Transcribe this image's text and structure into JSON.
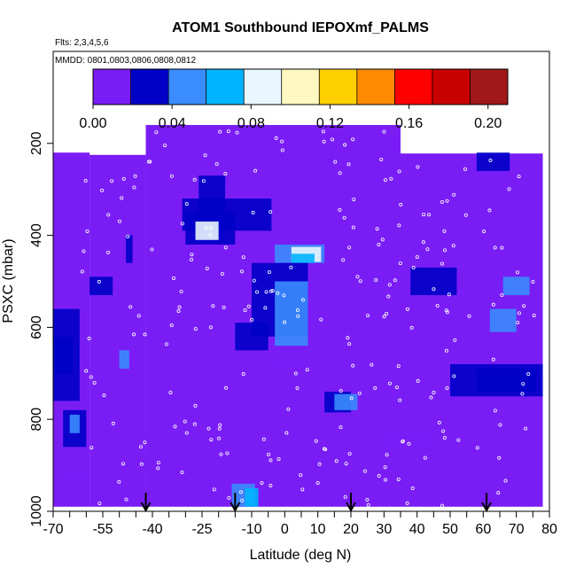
{
  "chart_data": {
    "type": "heatmap",
    "title": "ATOM1 Southbound IEPOXmf_PALMS",
    "flights_note": "Flts: 2,3,4,5,6",
    "dates_note": "MMDD: 0801,0803,0806,0808,0812",
    "xlabel": "Latitude (deg N)",
    "ylabel": "PSXC (mbar)",
    "xlim": [
      -70,
      80
    ],
    "ylim": [
      1000,
      0
    ],
    "x_ticks": [
      -70,
      -55,
      -40,
      -25,
      -10,
      0,
      10,
      20,
      30,
      40,
      50,
      60,
      70,
      80
    ],
    "x_minor_ticks": [
      -65,
      -60,
      -50,
      -45,
      -35,
      -30,
      -20,
      -15,
      -5,
      5,
      15,
      25,
      35,
      45,
      55,
      65,
      75
    ],
    "y_ticks": [
      200,
      400,
      600,
      800,
      1000
    ],
    "colorbar": {
      "ticks": [
        0.0,
        0.04,
        0.08,
        0.12,
        0.16,
        0.2
      ],
      "tick_labels": [
        "0.00",
        "0.04",
        "0.08",
        "0.12",
        "0.16",
        "0.20"
      ],
      "range": [
        0,
        0.21
      ],
      "colors": [
        "#7a1df5",
        "#0000c8",
        "#3a8cff",
        "#00b4ff",
        "#e8f6ff",
        "#fff8c0",
        "#ffd000",
        "#ff8c00",
        "#ff0000",
        "#c80000",
        "#a01818"
      ]
    },
    "background_value": 0.01,
    "coverage": [
      {
        "lat": [
          -70,
          -59
        ],
        "p": [
          220,
          990
        ]
      },
      {
        "lat": [
          -59,
          -42
        ],
        "p": [
          225,
          990
        ]
      },
      {
        "lat": [
          -42,
          35
        ],
        "p": [
          160,
          990
        ]
      },
      {
        "lat": [
          35,
          78
        ],
        "p": [
          222,
          990
        ]
      }
    ],
    "features": [
      {
        "lat": [
          -26,
          -18
        ],
        "p": [
          270,
          360
        ],
        "value": 0.03
      },
      {
        "lat": [
          -31,
          -4
        ],
        "p": [
          320,
          390
        ],
        "value": 0.02
      },
      {
        "lat": [
          -30,
          -15
        ],
        "p": [
          350,
          420
        ],
        "value": 0.035
      },
      {
        "lat": [
          -27,
          -20
        ],
        "p": [
          370,
          410
        ],
        "value": 0.08
      },
      {
        "lat": [
          -3,
          12
        ],
        "p": [
          420,
          460
        ],
        "value": 0.04
      },
      {
        "lat": [
          2,
          11
        ],
        "p": [
          425,
          458
        ],
        "value": 0.085
      },
      {
        "lat": [
          2,
          9
        ],
        "p": [
          440,
          460
        ],
        "value": 0.06
      },
      {
        "lat": [
          -10,
          7
        ],
        "p": [
          460,
          620
        ],
        "value": 0.025
      },
      {
        "lat": [
          -3,
          7
        ],
        "p": [
          500,
          640
        ],
        "value": 0.042
      },
      {
        "lat": [
          -15,
          -5
        ],
        "p": [
          590,
          650
        ],
        "value": 0.02
      },
      {
        "lat": [
          -5,
          6
        ],
        "p": [
          660,
          700
        ],
        "value": 0.018
      },
      {
        "lat": [
          12,
          20
        ],
        "p": [
          740,
          785
        ],
        "value": 0.035
      },
      {
        "lat": [
          15,
          22
        ],
        "p": [
          745,
          780
        ],
        "value": 0.05
      },
      {
        "lat": [
          -70,
          -62
        ],
        "p": [
          560,
          760
        ],
        "value": 0.02
      },
      {
        "lat": [
          -70,
          -64
        ],
        "p": [
          620,
          700
        ],
        "value": 0.03
      },
      {
        "lat": [
          -67,
          -60
        ],
        "p": [
          780,
          860
        ],
        "value": 0.025
      },
      {
        "lat": [
          -65,
          -62
        ],
        "p": [
          790,
          830
        ],
        "value": 0.04
      },
      {
        "lat": [
          -67,
          -60
        ],
        "p": [
          900,
          940
        ],
        "value": 0.018
      },
      {
        "lat": [
          -59,
          -52
        ],
        "p": [
          490,
          530
        ],
        "value": 0.02
      },
      {
        "lat": [
          -50,
          -47
        ],
        "p": [
          650,
          690
        ],
        "value": 0.04
      },
      {
        "lat": [
          -48,
          -46
        ],
        "p": [
          400,
          460
        ],
        "value": 0.03
      },
      {
        "lat": [
          -16,
          -9
        ],
        "p": [
          940,
          990
        ],
        "value": 0.04
      },
      {
        "lat": [
          -12,
          -8
        ],
        "p": [
          950,
          990
        ],
        "value": 0.06
      },
      {
        "lat": [
          38,
          52
        ],
        "p": [
          470,
          530
        ],
        "value": 0.02
      },
      {
        "lat": [
          58,
          68
        ],
        "p": [
          220,
          260
        ],
        "value": 0.02
      },
      {
        "lat": [
          66,
          74
        ],
        "p": [
          490,
          530
        ],
        "value": 0.045
      },
      {
        "lat": [
          62,
          70
        ],
        "p": [
          560,
          610
        ],
        "value": 0.04
      },
      {
        "lat": [
          50,
          78
        ],
        "p": [
          680,
          750
        ],
        "value": 0.02
      },
      {
        "lat": [
          58,
          76
        ],
        "p": [
          690,
          740
        ],
        "value": 0.028
      },
      {
        "lat": [
          30,
          45
        ],
        "p": [
          820,
          860
        ],
        "value": 0.015
      }
    ],
    "sample_points_note": "small white open circles scattered across the curtain",
    "flight_marker_latitudes": [
      -42,
      -15,
      20,
      61
    ]
  }
}
